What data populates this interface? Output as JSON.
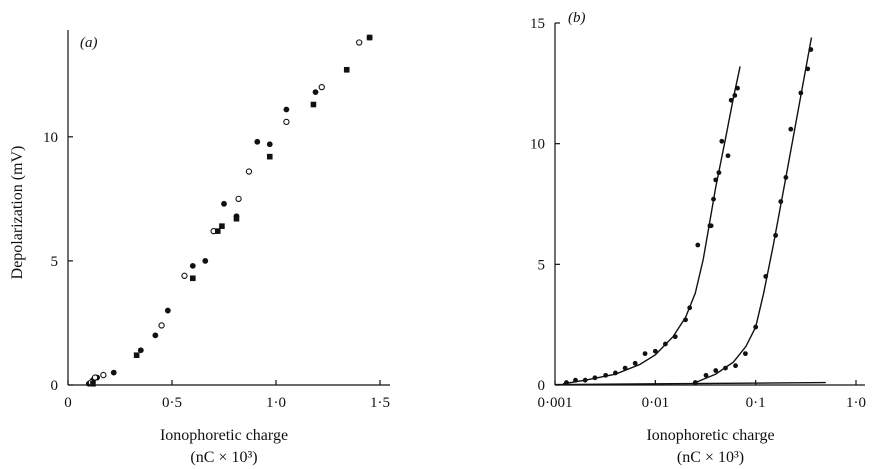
{
  "chart_data": [
    {
      "type": "scatter",
      "panel_label": "(a)",
      "xlabel": "Ionophoretic charge",
      "xlabel_units": "(nC × 10³)",
      "ylabel": "Depolarization (mV)",
      "xlim": [
        0,
        1.5
      ],
      "ylim": [
        0,
        14
      ],
      "xticks": [
        0,
        0.5,
        1.0,
        1.5
      ],
      "xtick_labels": [
        "0",
        "0·5",
        "1·0",
        "1·5"
      ],
      "yticks": [
        0,
        5,
        10
      ],
      "ytick_labels": [
        "0",
        "5",
        "10"
      ],
      "grid": false,
      "series": [
        {
          "marker": "filled-circle",
          "points": [
            [
              0.1,
              0.05
            ],
            [
              0.12,
              0.2
            ],
            [
              0.14,
              0.3
            ],
            [
              0.22,
              0.5
            ],
            [
              0.35,
              1.4
            ],
            [
              0.42,
              2.0
            ],
            [
              0.48,
              3.0
            ],
            [
              0.6,
              4.8
            ],
            [
              0.66,
              5.0
            ],
            [
              0.75,
              7.3
            ],
            [
              0.81,
              6.8
            ],
            [
              0.91,
              9.8
            ],
            [
              0.97,
              9.7
            ],
            [
              1.05,
              11.1
            ],
            [
              1.19,
              11.8
            ],
            [
              1.45,
              14.0
            ]
          ]
        },
        {
          "marker": "open-circle",
          "points": [
            [
              0.11,
              0.1
            ],
            [
              0.13,
              0.3
            ],
            [
              0.17,
              0.4
            ],
            [
              0.45,
              2.4
            ],
            [
              0.56,
              4.4
            ],
            [
              0.7,
              6.2
            ],
            [
              0.82,
              7.5
            ],
            [
              0.87,
              8.6
            ],
            [
              1.05,
              10.6
            ],
            [
              1.22,
              12.0
            ],
            [
              1.4,
              13.8
            ]
          ]
        },
        {
          "marker": "filled-square",
          "points": [
            [
              0.12,
              0.05
            ],
            [
              0.33,
              1.2
            ],
            [
              0.6,
              4.3
            ],
            [
              0.72,
              6.2
            ],
            [
              0.74,
              6.4
            ],
            [
              0.81,
              6.7
            ],
            [
              0.97,
              9.2
            ],
            [
              1.18,
              11.3
            ],
            [
              1.34,
              12.7
            ],
            [
              1.45,
              14.0
            ]
          ]
        }
      ]
    },
    {
      "type": "scatter",
      "panel_label": "(b)",
      "xlabel": "Ionophoretic charge",
      "xlabel_units": "(nC × 10³)",
      "ylabel": "",
      "xscale": "log",
      "xlim": [
        0.001,
        1.0
      ],
      "ylim": [
        0,
        15
      ],
      "xticks": [
        0.001,
        0.01,
        0.1,
        1.0
      ],
      "xtick_labels": [
        "0·001",
        "0·01",
        "0·1",
        "1·0"
      ],
      "yticks": [
        0,
        5,
        10,
        15
      ],
      "ytick_labels": [
        "0",
        "5",
        "10",
        "15"
      ],
      "grid": false,
      "series": [
        {
          "marker": "filled-circle",
          "points": [
            [
              0.0013,
              0.1
            ],
            [
              0.0016,
              0.2
            ],
            [
              0.002,
              0.2
            ],
            [
              0.0025,
              0.3
            ],
            [
              0.0032,
              0.4
            ],
            [
              0.004,
              0.5
            ],
            [
              0.005,
              0.7
            ],
            [
              0.0063,
              0.9
            ],
            [
              0.0079,
              1.3
            ],
            [
              0.01,
              1.4
            ],
            [
              0.0126,
              1.7
            ],
            [
              0.0158,
              2.0
            ],
            [
              0.02,
              2.7
            ],
            [
              0.022,
              3.2
            ],
            [
              0.0265,
              5.8
            ],
            [
              0.035,
              6.6
            ],
            [
              0.036,
              6.6
            ],
            [
              0.038,
              7.7
            ],
            [
              0.04,
              8.5
            ],
            [
              0.043,
              8.8
            ],
            [
              0.046,
              10.1
            ],
            [
              0.053,
              9.5
            ],
            [
              0.057,
              11.8
            ],
            [
              0.062,
              12.0
            ],
            [
              0.066,
              12.3
            ]
          ],
          "fit_line": [
            [
              0.0012,
              0.05
            ],
            [
              0.002,
              0.2
            ],
            [
              0.004,
              0.45
            ],
            [
              0.007,
              0.85
            ],
            [
              0.01,
              1.25
            ],
            [
              0.015,
              2.0
            ],
            [
              0.02,
              2.8
            ],
            [
              0.025,
              3.8
            ],
            [
              0.03,
              5.2
            ],
            [
              0.035,
              6.8
            ],
            [
              0.04,
              8.2
            ],
            [
              0.05,
              10.2
            ],
            [
              0.06,
              11.9
            ],
            [
              0.07,
              13.2
            ]
          ]
        },
        {
          "marker": "filled-circle",
          "points": [
            [
              0.025,
              0.1
            ],
            [
              0.032,
              0.4
            ],
            [
              0.04,
              0.6
            ],
            [
              0.05,
              0.7
            ],
            [
              0.063,
              0.8
            ],
            [
              0.079,
              1.3
            ],
            [
              0.1,
              2.4
            ],
            [
              0.126,
              4.5
            ],
            [
              0.158,
              6.2
            ],
            [
              0.178,
              7.6
            ],
            [
              0.2,
              8.6
            ],
            [
              0.224,
              10.6
            ],
            [
              0.282,
              12.1
            ],
            [
              0.33,
              13.1
            ],
            [
              0.355,
              13.9
            ]
          ],
          "fit_line": [
            [
              0.025,
              0.1
            ],
            [
              0.04,
              0.45
            ],
            [
              0.06,
              0.95
            ],
            [
              0.08,
              1.6
            ],
            [
              0.1,
              2.4
            ],
            [
              0.12,
              3.8
            ],
            [
              0.15,
              5.8
            ],
            [
              0.2,
              8.6
            ],
            [
              0.25,
              10.8
            ],
            [
              0.3,
              12.6
            ],
            [
              0.36,
              14.4
            ]
          ]
        }
      ],
      "baseline": [
        [
          0.001,
          0.02
        ],
        [
          0.5,
          0.1
        ]
      ]
    }
  ]
}
